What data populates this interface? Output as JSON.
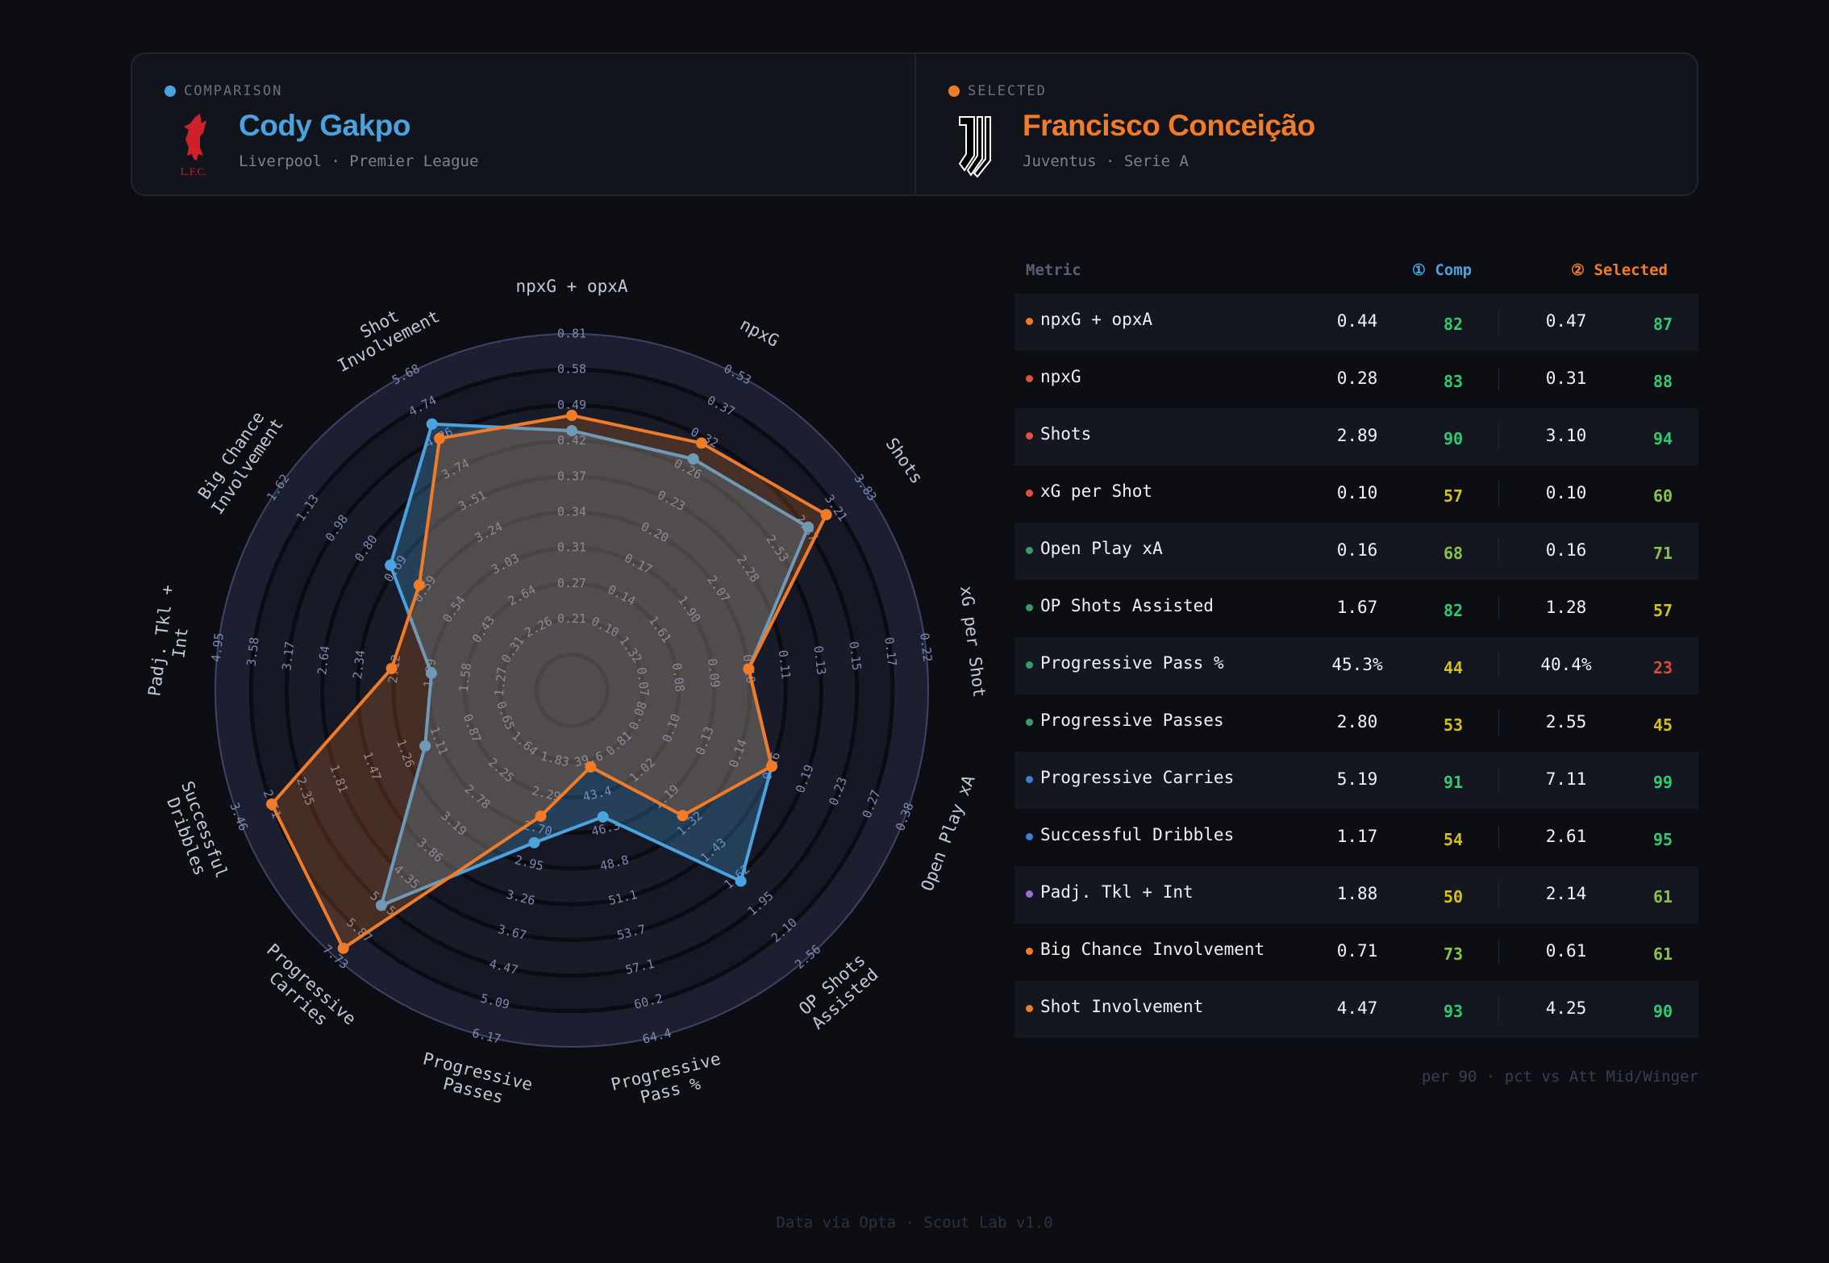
{
  "colors": {
    "comp": "#4aa3df",
    "selected": "#f07c2a",
    "pct_high": "#2ecc71",
    "pct_mid_high": "#8bc34a",
    "pct_mid": "#d4c11a",
    "pct_low": "#e0473c"
  },
  "comparison": {
    "tag": "COMPARISON",
    "name": "Cody Gakpo",
    "club": "Liverpool · Premier League",
    "logo_text": "L.F.C."
  },
  "selected": {
    "tag": "SELECTED",
    "name": "Francisco Conceição",
    "club": "Juventus · Serie A"
  },
  "table": {
    "headers": {
      "metric": "Metric",
      "comp": "① Comp",
      "selected": "② Selected"
    },
    "rows": [
      {
        "metric": "npxG + opxA",
        "cat": "#f07c2a",
        "comp": "0.44",
        "comp_pct": 82,
        "sel": "0.47",
        "sel_pct": 87
      },
      {
        "metric": "npxG",
        "cat": "#e0513f",
        "comp": "0.28",
        "comp_pct": 83,
        "sel": "0.31",
        "sel_pct": 88
      },
      {
        "metric": "Shots",
        "cat": "#e0513f",
        "comp": "2.89",
        "comp_pct": 90,
        "sel": "3.10",
        "sel_pct": 94
      },
      {
        "metric": "xG per Shot",
        "cat": "#e0513f",
        "comp": "0.10",
        "comp_pct": 57,
        "sel": "0.10",
        "sel_pct": 60
      },
      {
        "metric": "Open Play xA",
        "cat": "#3a9a6a",
        "comp": "0.16",
        "comp_pct": 68,
        "sel": "0.16",
        "sel_pct": 71
      },
      {
        "metric": "OP Shots Assisted",
        "cat": "#3a9a6a",
        "comp": "1.67",
        "comp_pct": 82,
        "sel": "1.28",
        "sel_pct": 57
      },
      {
        "metric": "Progressive Pass %",
        "cat": "#3a9a6a",
        "comp": "45.3%",
        "comp_pct": 44,
        "sel": "40.4%",
        "sel_pct": 23
      },
      {
        "metric": "Progressive Passes",
        "cat": "#3a9a6a",
        "comp": "2.80",
        "comp_pct": 53,
        "sel": "2.55",
        "sel_pct": 45
      },
      {
        "metric": "Progressive Carries",
        "cat": "#3f7fd0",
        "comp": "5.19",
        "comp_pct": 91,
        "sel": "7.11",
        "sel_pct": 99
      },
      {
        "metric": "Successful Dribbles",
        "cat": "#3f7fd0",
        "comp": "1.17",
        "comp_pct": 54,
        "sel": "2.61",
        "sel_pct": 95
      },
      {
        "metric": "Padj. Tkl + Int",
        "cat": "#9b6fd6",
        "comp": "1.88",
        "comp_pct": 50,
        "sel": "2.14",
        "sel_pct": 61
      },
      {
        "metric": "Big Chance Involvement",
        "cat": "#f07c2a",
        "comp": "0.71",
        "comp_pct": 73,
        "sel": "0.61",
        "sel_pct": 61
      },
      {
        "metric": "Shot Involvement",
        "cat": "#f07c2a",
        "comp": "4.47",
        "comp_pct": 93,
        "sel": "4.25",
        "sel_pct": 90
      }
    ],
    "note": "per 90 · pct vs Att Mid/Winger"
  },
  "footer": "Data via Opta · Scout Lab v1.0",
  "chart_data": {
    "type": "radar",
    "series": [
      {
        "name": "Cody Gakpo",
        "values": [
          0.44,
          0.28,
          2.89,
          0.1,
          0.16,
          1.67,
          45.3,
          2.8,
          5.19,
          1.17,
          1.88,
          0.71,
          4.47
        ]
      },
      {
        "name": "Francisco Conceição",
        "values": [
          0.47,
          0.31,
          3.1,
          0.1,
          0.16,
          1.28,
          40.4,
          2.55,
          7.11,
          2.61,
          2.14,
          0.61,
          4.25
        ]
      }
    ],
    "axes": [
      {
        "label": [
          "npxG + opxA"
        ],
        "ticks": [
          "0.21",
          "0.27",
          "0.31",
          "0.34",
          "0.37",
          "0.42",
          "0.49",
          "0.58",
          "0.81"
        ]
      },
      {
        "label": [
          "npxG"
        ],
        "ticks": [
          "0.10",
          "0.14",
          "0.17",
          "0.20",
          "0.23",
          "0.26",
          "0.32",
          "0.37",
          "0.53"
        ]
      },
      {
        "label": [
          "Shots"
        ],
        "ticks": [
          "1.32",
          "1.61",
          "1.90",
          "2.07",
          "2.28",
          "2.53",
          "2.87",
          "3.21",
          "3.83"
        ]
      },
      {
        "label": [
          "xG per Shot"
        ],
        "ticks": [
          "0.07",
          "0.08",
          "0.09",
          "0.10",
          "0.11",
          "0.13",
          "0.15",
          "0.17",
          "0.22"
        ]
      },
      {
        "label": [
          "Open Play xA"
        ],
        "ticks": [
          "0.08",
          "0.10",
          "0.13",
          "0.14",
          "0.16",
          "0.19",
          "0.23",
          "0.27",
          "0.38"
        ]
      },
      {
        "label": [
          "OP Shots",
          "Assisted"
        ],
        "ticks": [
          "0.81",
          "1.02",
          "1.19",
          "1.32",
          "1.43",
          "1.62",
          "1.95",
          "2.10",
          "2.56"
        ]
      },
      {
        "label": [
          "Progressive",
          "Pass %"
        ],
        "ticks": [
          "39.6",
          "43.4",
          "46.3",
          "48.8",
          "51.1",
          "53.7",
          "57.1",
          "60.2",
          "64.4"
        ]
      },
      {
        "label": [
          "Progressive",
          "Passes"
        ],
        "ticks": [
          "1.83",
          "2.29",
          "2.70",
          "2.95",
          "3.26",
          "3.67",
          "4.47",
          "5.09",
          "6.17"
        ]
      },
      {
        "label": [
          "Progressive",
          "Carries"
        ],
        "ticks": [
          "1.64",
          "2.25",
          "2.78",
          "3.19",
          "3.86",
          "4.35",
          "5.15",
          "5.87",
          "7.73"
        ]
      },
      {
        "label": [
          "Successful",
          "Dribbles"
        ],
        "ticks": [
          "0.65",
          "0.87",
          "1.11",
          "1.26",
          "1.47",
          "1.81",
          "2.35",
          "2.61",
          "3.46"
        ]
      },
      {
        "label": [
          "Padj. Tkl +",
          "Int"
        ],
        "ticks": [
          "1.27",
          "1.58",
          "1.89",
          "2.12",
          "2.34",
          "2.64",
          "3.17",
          "3.58",
          "4.95"
        ]
      },
      {
        "label": [
          "Big Chance",
          "Involvement"
        ],
        "ticks": [
          "0.31",
          "0.43",
          "0.54",
          "0.59",
          "0.69",
          "0.80",
          "0.98",
          "1.13",
          "1.62"
        ]
      },
      {
        "label": [
          "Shot",
          "Involvement"
        ],
        "ticks": [
          "2.26",
          "2.64",
          "3.03",
          "3.24",
          "3.51",
          "3.74",
          "4.26",
          "4.74",
          "5.68"
        ]
      }
    ],
    "rings": 10,
    "tick_rings_start": 2,
    "legend": "top"
  }
}
